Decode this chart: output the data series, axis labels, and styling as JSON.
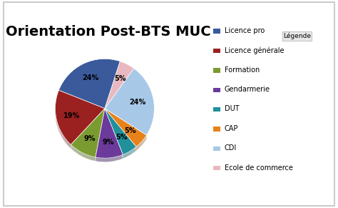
{
  "title": "Orientation Post-BTS MUC",
  "labels": [
    "Licence pro",
    "Licence générale",
    "Formation",
    "Gendarmerie",
    "DUT",
    "CAP",
    "CDI",
    "Ecole de commerce"
  ],
  "values": [
    24,
    19,
    9,
    9,
    5,
    5,
    24,
    5
  ],
  "colors": [
    "#3A5A9B",
    "#9B2020",
    "#7A9B30",
    "#6B3A9B",
    "#20909B",
    "#E8821A",
    "#A8C8E8",
    "#E8B8C0"
  ],
  "startangle": 72,
  "legend_title": "Légende",
  "title_fontsize": 14,
  "title_fontweight": "bold",
  "pct_fontsize": 7,
  "legend_fontsize": 7,
  "frame_color": "#cccccc",
  "bg_color": "#ffffff"
}
